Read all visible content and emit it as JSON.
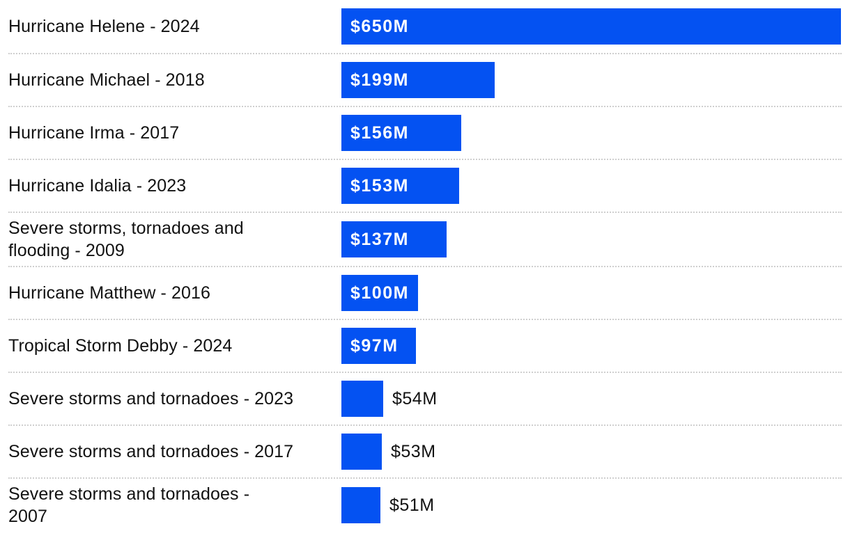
{
  "chart_data": {
    "type": "bar",
    "orientation": "horizontal",
    "unit": "million USD",
    "value_axis_max": 650,
    "grid": false,
    "legend": false,
    "axes_hidden": true,
    "row_separators": "dotted",
    "value_label_rule": "inside bar start when bar is wide enough, otherwise right of bar",
    "categories": [
      "Hurricane Helene - 2024",
      "Hurricane Michael - 2018",
      "Hurricane Irma - 2017",
      "Hurricane Idalia - 2023",
      "Severe storms, tornadoes and flooding - 2009",
      "Hurricane Matthew - 2016",
      "Tropical Storm Debby - 2024",
      "Severe storms and tornadoes - 2023",
      "Severe storms and tornadoes - 2017",
      "Severe storms and tornadoes - 2007"
    ],
    "values": [
      650,
      199,
      156,
      153,
      137,
      100,
      97,
      54,
      53,
      51
    ],
    "rows": [
      {
        "label_lines": [
          "Hurricane Helene - 2024"
        ],
        "value": 650,
        "value_label": "$650M",
        "value_position": "inside"
      },
      {
        "label_lines": [
          "Hurricane Michael - 2018"
        ],
        "value": 199,
        "value_label": "$199M",
        "value_position": "inside"
      },
      {
        "label_lines": [
          "Hurricane Irma - 2017"
        ],
        "value": 156,
        "value_label": "$156M",
        "value_position": "inside"
      },
      {
        "label_lines": [
          "Hurricane Idalia - 2023"
        ],
        "value": 153,
        "value_label": "$153M",
        "value_position": "inside"
      },
      {
        "label_lines": [
          "Severe storms, tornadoes and",
          "flooding - 2009"
        ],
        "value": 137,
        "value_label": "$137M",
        "value_position": "inside"
      },
      {
        "label_lines": [
          "Hurricane Matthew - 2016"
        ],
        "value": 100,
        "value_label": "$100M",
        "value_position": "inside"
      },
      {
        "label_lines": [
          "Tropical Storm Debby - 2024"
        ],
        "value": 97,
        "value_label": "$97M",
        "value_position": "inside"
      },
      {
        "label_lines": [
          "Severe storms and tornadoes - 2023"
        ],
        "value": 54,
        "value_label": "$54M",
        "value_position": "outside"
      },
      {
        "label_lines": [
          "Severe storms and tornadoes - 2017"
        ],
        "value": 53,
        "value_label": "$53M",
        "value_position": "outside"
      },
      {
        "label_lines": [
          "Severe storms and tornadoes -",
          "2007"
        ],
        "value": 51,
        "value_label": "$51M",
        "value_position": "outside"
      }
    ],
    "colors": {
      "bar": "#0452f2",
      "value_label_inside": "#ffffff",
      "value_label_outside": "#121212",
      "category_label": "#121212",
      "separator": "#cfcfcf",
      "background": "#ffffff"
    }
  }
}
